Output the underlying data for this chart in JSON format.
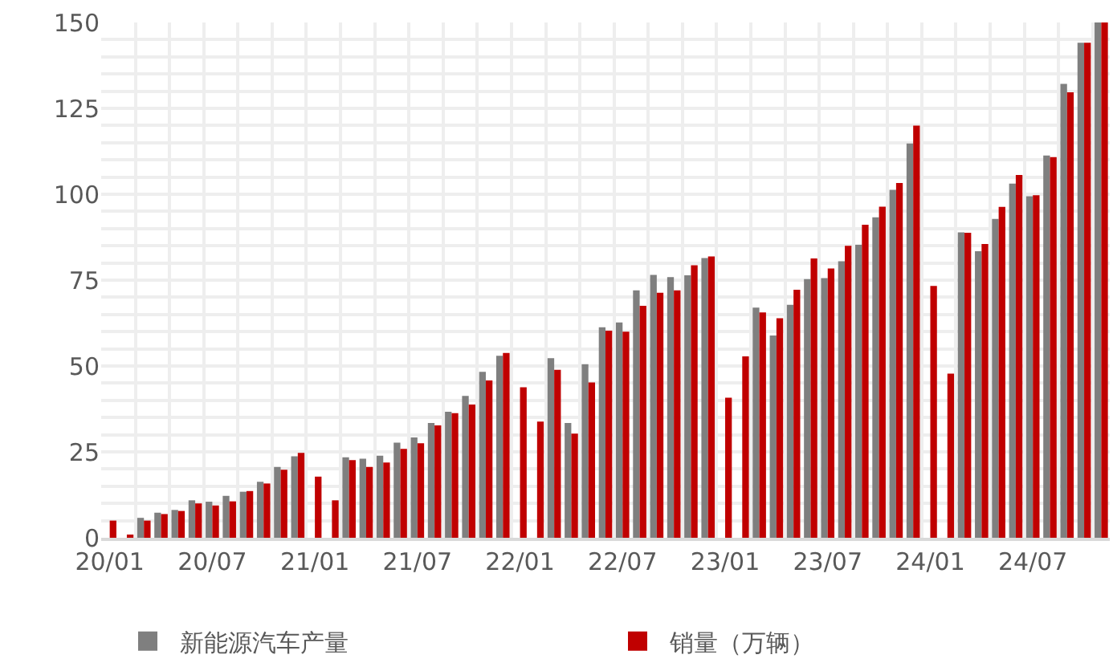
{
  "chart_data": {
    "type": "bar",
    "categories": [
      "20/01",
      null,
      null,
      null,
      null,
      null,
      "20/07",
      null,
      null,
      null,
      null,
      null,
      "21/01",
      null,
      null,
      null,
      null,
      null,
      "21/07",
      null,
      null,
      null,
      null,
      null,
      "22/01",
      null,
      null,
      null,
      null,
      null,
      "22/07",
      null,
      null,
      null,
      null,
      null,
      "23/01",
      null,
      null,
      null,
      null,
      null,
      "23/07",
      null,
      null,
      null,
      null,
      null,
      "24/01",
      null,
      null,
      null,
      null,
      null,
      "24/07",
      null,
      null,
      null,
      null
    ],
    "series": [
      {
        "name": "新能源汽车产量",
        "color": "#7f7f7f",
        "values": [
          null,
          null,
          5.8,
          7.3,
          8.1,
          10.9,
          10.5,
          12.2,
          13.4,
          16.3,
          20.6,
          23.7,
          null,
          null,
          23.4,
          23.0,
          23.9,
          27.7,
          29.2,
          33.4,
          36.7,
          41.3,
          48.3,
          53.0,
          null,
          null,
          52.3,
          33.4,
          50.5,
          61.3,
          62.7,
          72.0,
          76.5,
          75.9,
          76.4,
          81.4,
          null,
          null,
          67.0,
          58.9,
          67.8,
          75.3,
          75.6,
          80.5,
          85.3,
          93.3,
          101.3,
          114.8,
          null,
          null,
          88.9,
          83.4,
          92.8,
          103.1,
          99.4,
          111.3,
          132.1,
          144.1,
          150
        ]
      },
      {
        "name": "销量（万辆）",
        "color": "#c00000",
        "values": [
          5.0,
          0.8,
          5.0,
          6.9,
          7.8,
          10.0,
          9.4,
          10.6,
          13.6,
          15.8,
          19.8,
          24.7,
          17.8,
          10.9,
          22.6,
          20.6,
          21.9,
          25.9,
          27.5,
          32.7,
          36.3,
          38.8,
          45.8,
          53.8,
          43.8,
          33.8,
          48.9,
          30.3,
          45.2,
          60.3,
          60.0,
          67.5,
          71.3,
          72.0,
          79.3,
          81.9,
          40.8,
          52.8,
          65.6,
          63.9,
          72.2,
          81.3,
          78.4,
          85.0,
          91.1,
          96.4,
          103.3,
          120.0,
          73.3,
          47.8,
          88.8,
          85.5,
          96.3,
          105.6,
          99.7,
          110.8,
          129.7,
          144.1,
          150
        ]
      }
    ],
    "ylim": [
      0,
      150
    ],
    "yticks": [
      0,
      {
        "value": 5,
        "label": null
      },
      {
        "value": 10,
        "label": null
      },
      {
        "value": 15,
        "label": null
      },
      {
        "value": 20,
        "label": null
      },
      25,
      {
        "value": 30,
        "label": null
      },
      {
        "value": 35,
        "label": null
      },
      {
        "value": 40,
        "label": null
      },
      {
        "value": 45,
        "label": null
      },
      50,
      {
        "value": 55,
        "label": null
      },
      {
        "value": 60,
        "label": null
      },
      {
        "value": 65,
        "label": null
      },
      {
        "value": 70,
        "label": null
      },
      75,
      {
        "value": 80,
        "label": null
      },
      {
        "value": 85,
        "label": null
      },
      {
        "value": 90,
        "label": null
      },
      {
        "value": 95,
        "label": null
      },
      100,
      {
        "value": 105,
        "label": null
      },
      {
        "value": 110,
        "label": null
      },
      {
        "value": 115,
        "label": null
      },
      {
        "value": 120,
        "label": null
      },
      125,
      {
        "value": 130,
        "label": null
      },
      {
        "value": 135,
        "label": null
      },
      {
        "value": 140,
        "label": null
      },
      {
        "value": 145,
        "label": null
      },
      150
    ],
    "grid": true,
    "legend": "bottom"
  }
}
